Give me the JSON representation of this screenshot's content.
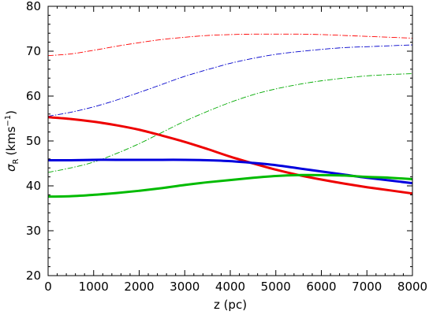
{
  "chart_data": {
    "type": "line",
    "xlabel": "z (pc)",
    "ylabel": {
      "symbol": "σ",
      "subscript": "R",
      "unit": "(kms",
      "exponent": "−1",
      "close": ")"
    },
    "xlim": [
      0,
      8000
    ],
    "ylim": [
      20,
      80
    ],
    "x_ticks": [
      "0",
      "1000",
      "2000",
      "3000",
      "4000",
      "5000",
      "6000",
      "7000",
      "8000"
    ],
    "y_ticks": [
      "20",
      "30",
      "40",
      "50",
      "60",
      "70",
      "80"
    ],
    "grid": false,
    "legend": "none",
    "series": [
      {
        "color": "#ff0000",
        "style": "dashdot-thin",
        "x": [
          0,
          500,
          1000,
          1500,
          2000,
          2500,
          3000,
          3500,
          4000,
          4500,
          5000,
          5500,
          6000,
          6500,
          7000,
          7500,
          8000
        ],
        "y": [
          69.0,
          69.4,
          70.2,
          71.1,
          71.9,
          72.6,
          73.1,
          73.5,
          73.7,
          73.8,
          73.8,
          73.8,
          73.7,
          73.5,
          73.3,
          73.1,
          72.9
        ]
      },
      {
        "color": "#0000cc",
        "style": "dashdot-thin",
        "x": [
          0,
          500,
          1000,
          1500,
          2000,
          2500,
          3000,
          3500,
          4000,
          4500,
          5000,
          5500,
          6000,
          6500,
          7000,
          7500,
          8000
        ],
        "y": [
          55.5,
          56.4,
          57.6,
          59.1,
          60.8,
          62.6,
          64.4,
          65.9,
          67.3,
          68.4,
          69.3,
          69.9,
          70.4,
          70.8,
          71.0,
          71.2,
          71.4
        ]
      },
      {
        "color": "#00aa00",
        "style": "dashdot-thin",
        "x": [
          0,
          500,
          1000,
          1500,
          2000,
          2500,
          3000,
          3500,
          4000,
          4500,
          5000,
          5500,
          6000,
          6500,
          7000,
          7500,
          8000
        ],
        "y": [
          43.0,
          44.0,
          45.3,
          47.2,
          49.4,
          51.9,
          54.4,
          56.6,
          58.6,
          60.3,
          61.6,
          62.6,
          63.4,
          64.0,
          64.5,
          64.8,
          65.0
        ]
      },
      {
        "color": "#ee0000",
        "style": "solid-thick",
        "x": [
          0,
          500,
          1000,
          1500,
          2000,
          2500,
          3000,
          3500,
          4000,
          4500,
          5000,
          5500,
          6000,
          6500,
          7000,
          7500,
          8000
        ],
        "y": [
          55.3,
          54.9,
          54.3,
          53.5,
          52.5,
          51.2,
          49.8,
          48.2,
          46.5,
          45.0,
          43.6,
          42.4,
          41.4,
          40.5,
          39.7,
          39.0,
          38.3
        ]
      },
      {
        "color": "#0000dd",
        "style": "solid-thick",
        "x": [
          0,
          500,
          1000,
          1500,
          2000,
          2500,
          3000,
          3500,
          4000,
          4500,
          5000,
          5500,
          6000,
          6500,
          7000,
          7500,
          8000
        ],
        "y": [
          45.7,
          45.7,
          45.8,
          45.8,
          45.8,
          45.8,
          45.8,
          45.7,
          45.5,
          45.1,
          44.6,
          43.9,
          43.2,
          42.5,
          41.8,
          41.2,
          40.6
        ]
      },
      {
        "color": "#00bb00",
        "style": "solid-thick",
        "x": [
          0,
          500,
          1000,
          1500,
          2000,
          2500,
          3000,
          3500,
          4000,
          4500,
          5000,
          5500,
          6000,
          6500,
          7000,
          7500,
          8000
        ],
        "y": [
          37.6,
          37.7,
          38.0,
          38.4,
          38.9,
          39.5,
          40.2,
          40.8,
          41.3,
          41.8,
          42.2,
          42.4,
          42.4,
          42.3,
          42.0,
          41.8,
          41.5
        ]
      }
    ]
  }
}
